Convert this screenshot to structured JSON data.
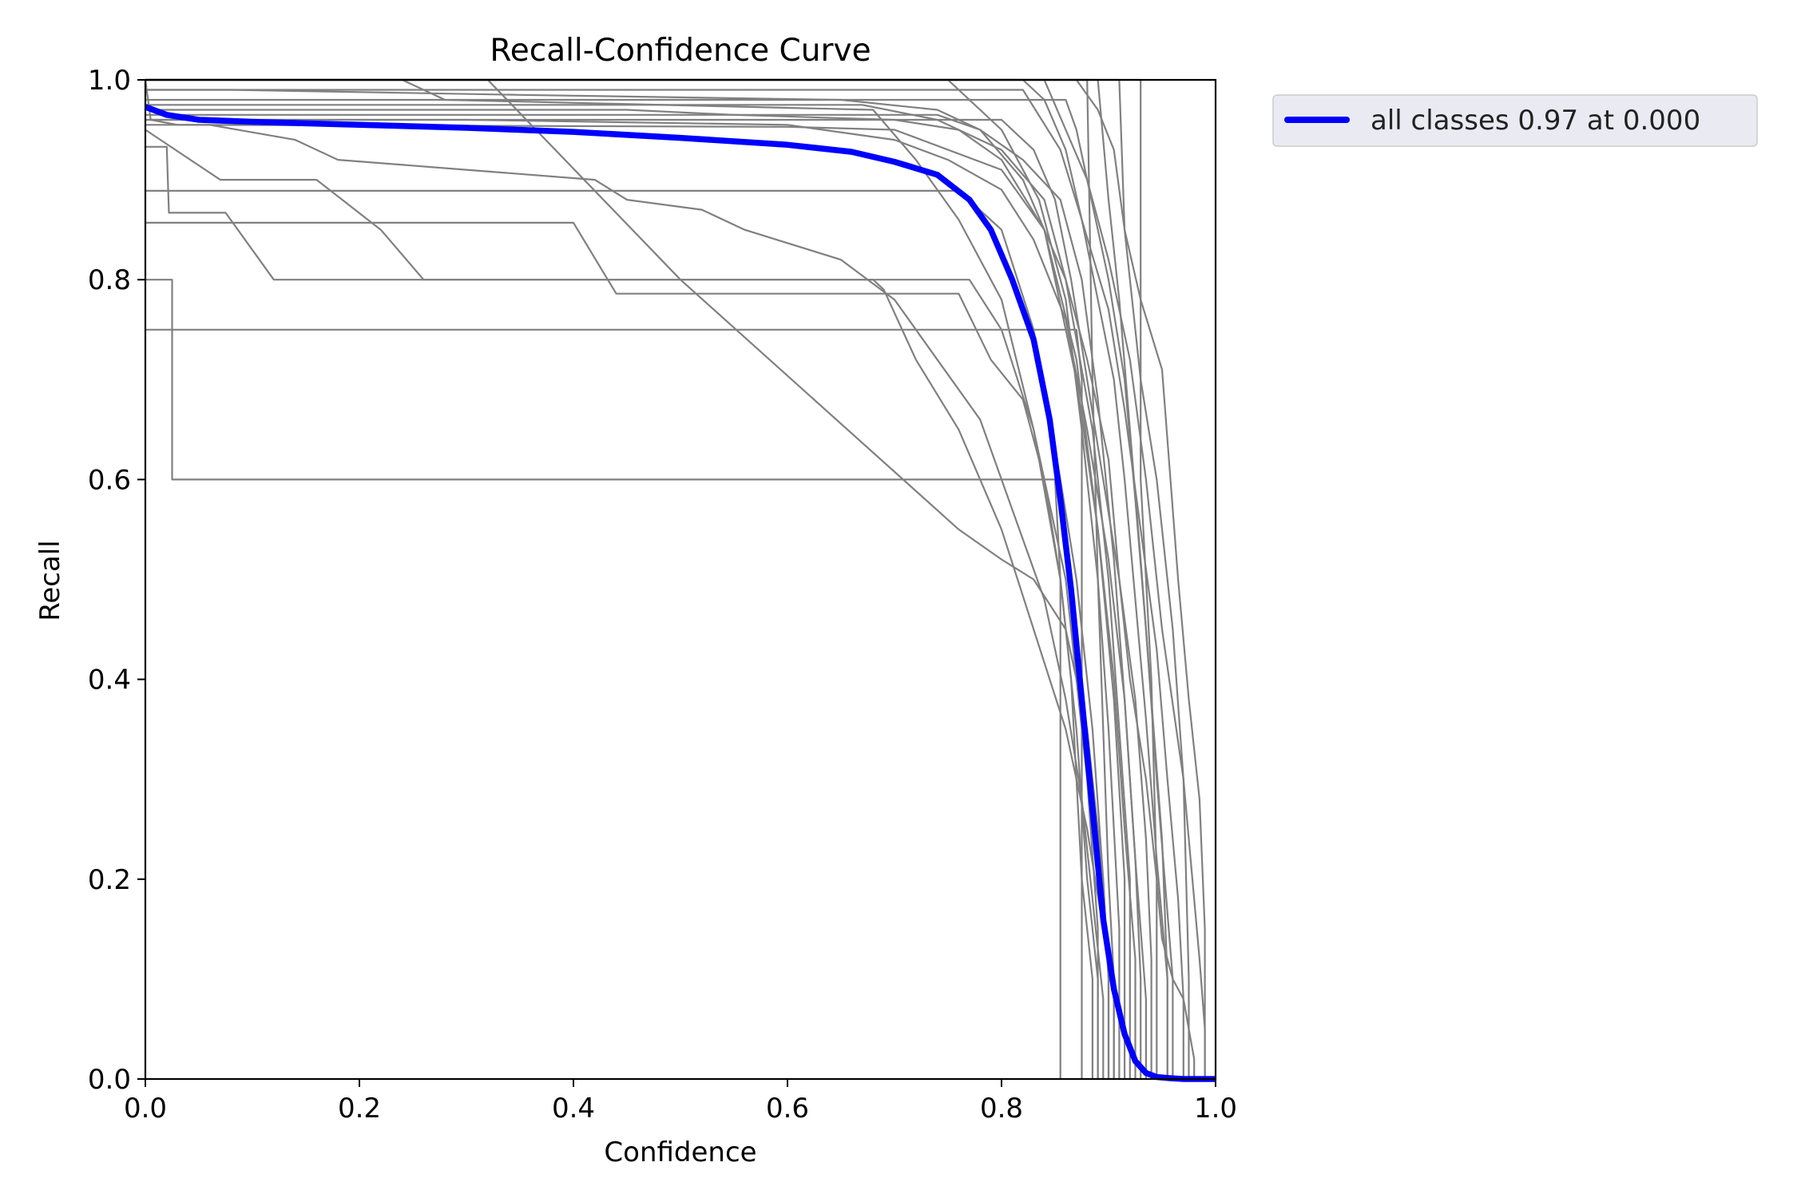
{
  "chart_data": {
    "type": "line",
    "title": "Recall-Confidence Curve",
    "xlabel": "Confidence",
    "ylabel": "Recall",
    "xlim": [
      0,
      1
    ],
    "ylim": [
      0,
      1
    ],
    "xticks": [
      "0.0",
      "0.2",
      "0.4",
      "0.6",
      "0.8",
      "1.0"
    ],
    "yticks": [
      "0.0",
      "0.2",
      "0.4",
      "0.6",
      "0.8",
      "1.0"
    ],
    "grid": false,
    "legend_position": "outside-top-right",
    "colors": {
      "class_curves": "#808080",
      "all_classes": "#0000ff",
      "legend_bg": "#eaeaf2"
    },
    "series": [
      {
        "name": "all classes 0.97 at 0.000",
        "x": [
          0.0,
          0.02,
          0.05,
          0.1,
          0.2,
          0.3,
          0.4,
          0.5,
          0.6,
          0.66,
          0.7,
          0.74,
          0.77,
          0.79,
          0.81,
          0.83,
          0.845,
          0.855,
          0.865,
          0.875,
          0.885,
          0.895,
          0.905,
          0.915,
          0.925,
          0.935,
          0.945,
          0.955,
          0.97,
          1.0
        ],
        "y": [
          0.973,
          0.965,
          0.96,
          0.958,
          0.955,
          0.952,
          0.948,
          0.942,
          0.935,
          0.928,
          0.918,
          0.905,
          0.88,
          0.85,
          0.8,
          0.74,
          0.66,
          0.58,
          0.49,
          0.38,
          0.27,
          0.16,
          0.09,
          0.045,
          0.018,
          0.006,
          0.002,
          0.001,
          0.0,
          0.0
        ]
      },
      {
        "x": [
          0.0,
          0.025,
          0.025,
          0.85,
          0.855,
          0.855
        ],
        "y": [
          0.8,
          0.8,
          0.6,
          0.6,
          0.5,
          0.0
        ]
      },
      {
        "x": [
          0.0,
          0.87,
          0.875,
          0.875
        ],
        "y": [
          0.75,
          0.75,
          0.7,
          0.0
        ]
      },
      {
        "x": [
          0.0,
          0.4,
          0.44,
          0.76,
          0.79,
          0.82,
          0.84,
          0.855,
          0.865,
          0.875,
          0.885,
          0.885
        ],
        "y": [
          0.857,
          0.857,
          0.786,
          0.786,
          0.72,
          0.68,
          0.6,
          0.5,
          0.4,
          0.2,
          0.1,
          0.0
        ]
      },
      {
        "x": [
          0.0,
          0.02,
          0.022,
          0.075,
          0.12,
          0.77,
          0.8,
          0.83,
          0.86,
          0.88,
          0.89,
          0.89
        ],
        "y": [
          0.933,
          0.933,
          0.867,
          0.867,
          0.8,
          0.8,
          0.75,
          0.65,
          0.5,
          0.3,
          0.15,
          0.0
        ]
      },
      {
        "x": [
          0.0,
          0.07,
          0.16,
          0.22,
          0.26,
          0.68,
          0.69,
          0.72,
          0.76,
          0.8,
          0.83,
          0.86,
          0.88,
          0.895,
          0.905,
          0.905
        ],
        "y": [
          0.95,
          0.9,
          0.9,
          0.85,
          0.8,
          0.8,
          0.79,
          0.72,
          0.65,
          0.55,
          0.45,
          0.35,
          0.25,
          0.15,
          0.08,
          0.0
        ]
      },
      {
        "x": [
          0.0,
          0.76,
          0.8,
          0.83,
          0.855,
          0.87,
          0.885,
          0.895,
          0.9,
          0.9
        ],
        "y": [
          0.889,
          0.889,
          0.85,
          0.75,
          0.6,
          0.5,
          0.35,
          0.2,
          0.1,
          0.0
        ]
      },
      {
        "x": [
          0.0,
          0.24,
          0.28,
          0.68,
          0.72,
          0.76,
          0.8,
          0.83,
          0.855,
          0.87,
          0.88,
          0.89,
          0.89
        ],
        "y": [
          1.0,
          1.0,
          0.98,
          0.97,
          0.92,
          0.86,
          0.78,
          0.65,
          0.5,
          0.35,
          0.2,
          0.1,
          0.0
        ]
      },
      {
        "x": [
          0.0,
          0.06,
          0.14,
          0.18,
          0.3,
          0.42,
          0.45,
          0.52,
          0.56,
          0.62,
          0.65,
          0.7,
          0.74,
          0.78,
          0.81,
          0.84,
          0.86,
          0.875,
          0.885,
          0.895,
          0.895
        ],
        "y": [
          0.955,
          0.955,
          0.94,
          0.92,
          0.91,
          0.9,
          0.88,
          0.87,
          0.85,
          0.83,
          0.82,
          0.78,
          0.72,
          0.66,
          0.57,
          0.48,
          0.38,
          0.28,
          0.18,
          0.08,
          0.0
        ]
      },
      {
        "x": [
          0.0,
          0.005,
          0.03,
          0.6,
          0.7,
          0.8,
          0.84,
          0.87,
          0.89,
          0.905,
          0.915,
          0.925,
          0.925
        ],
        "y": [
          1.0,
          0.96,
          0.955,
          0.953,
          0.95,
          0.91,
          0.85,
          0.7,
          0.55,
          0.4,
          0.25,
          0.12,
          0.0
        ]
      },
      {
        "x": [
          0.0,
          0.08,
          0.35,
          0.65,
          0.74,
          0.78,
          0.82,
          0.86,
          0.885,
          0.9,
          0.91,
          0.92,
          0.92
        ],
        "y": [
          0.99,
          0.99,
          0.985,
          0.98,
          0.97,
          0.95,
          0.9,
          0.8,
          0.65,
          0.5,
          0.35,
          0.2,
          0.0
        ]
      },
      {
        "x": [
          0.0,
          0.45,
          0.55,
          0.7,
          0.76,
          0.8,
          0.84,
          0.87,
          0.89,
          0.905,
          0.915,
          0.915
        ],
        "y": [
          0.97,
          0.97,
          0.965,
          0.96,
          0.95,
          0.92,
          0.85,
          0.72,
          0.55,
          0.38,
          0.2,
          0.0
        ]
      },
      {
        "x": [
          0.0,
          0.75,
          0.8,
          0.835,
          0.86,
          0.875,
          0.89,
          0.9,
          0.91,
          0.91
        ],
        "y": [
          1.0,
          1.0,
          0.95,
          0.88,
          0.78,
          0.65,
          0.5,
          0.35,
          0.15,
          0.0
        ]
      },
      {
        "x": [
          0.0,
          0.32,
          0.5,
          0.76,
          0.8,
          0.83,
          0.86,
          0.88,
          0.895,
          0.9,
          0.9
        ],
        "y": [
          1.0,
          1.0,
          0.8,
          0.55,
          0.52,
          0.5,
          0.45,
          0.35,
          0.2,
          0.1,
          0.0
        ]
      },
      {
        "x": [
          0.0,
          0.74,
          0.78,
          0.82,
          0.855,
          0.875,
          0.89,
          0.905,
          0.915,
          0.925,
          0.93,
          0.93
        ],
        "y": [
          0.965,
          0.965,
          0.95,
          0.92,
          0.88,
          0.8,
          0.68,
          0.52,
          0.38,
          0.22,
          0.1,
          0.0
        ]
      },
      {
        "x": [
          0.0,
          0.82,
          0.84,
          0.86,
          0.875,
          0.89,
          0.905,
          0.915,
          0.925,
          0.935,
          0.945,
          0.955,
          0.955
        ],
        "y": [
          1.0,
          1.0,
          0.98,
          0.93,
          0.86,
          0.78,
          0.7,
          0.6,
          0.48,
          0.36,
          0.22,
          0.1,
          0.0
        ]
      },
      {
        "x": [
          0.0,
          0.84,
          0.86,
          0.88,
          0.9,
          0.915,
          0.925,
          0.935,
          0.945,
          0.96,
          0.96
        ],
        "y": [
          1.0,
          1.0,
          0.95,
          0.9,
          0.8,
          0.7,
          0.58,
          0.45,
          0.3,
          0.1,
          0.0
        ]
      },
      {
        "x": [
          0.0,
          0.87,
          0.89,
          0.905,
          0.915,
          0.93,
          0.95,
          0.965,
          0.975,
          0.985,
          0.99,
          0.99
        ],
        "y": [
          1.0,
          1.0,
          0.97,
          0.93,
          0.85,
          0.78,
          0.71,
          0.5,
          0.38,
          0.28,
          0.15,
          0.0
        ]
      },
      {
        "x": [
          0.0,
          0.91,
          0.915,
          0.92,
          0.93,
          0.945,
          0.96,
          0.97,
          0.975,
          0.975
        ],
        "y": [
          1.0,
          1.0,
          0.85,
          0.8,
          0.7,
          0.6,
          0.45,
          0.3,
          0.1,
          0.0
        ]
      },
      {
        "x": [
          0.0,
          0.86,
          0.87,
          0.88,
          0.9,
          0.92,
          0.935,
          0.95,
          0.97,
          0.985,
          0.99,
          0.99
        ],
        "y": [
          0.98,
          0.98,
          0.95,
          0.9,
          0.82,
          0.72,
          0.6,
          0.45,
          0.3,
          0.12,
          0.05,
          0.0
        ]
      },
      {
        "x": [
          0.0,
          0.67,
          0.74,
          0.8,
          0.84,
          0.86,
          0.88,
          0.9,
          0.91,
          0.925,
          0.935,
          0.94,
          0.94
        ],
        "y": [
          0.975,
          0.975,
          0.96,
          0.93,
          0.88,
          0.8,
          0.72,
          0.62,
          0.5,
          0.38,
          0.24,
          0.12,
          0.0
        ]
      },
      {
        "x": [
          0.0,
          0.88,
          0.885,
          0.89,
          0.895,
          0.9,
          0.905,
          0.905
        ],
        "y": [
          1.0,
          1.0,
          0.7,
          0.5,
          0.35,
          0.2,
          0.1,
          0.0
        ]
      },
      {
        "x": [
          0.0,
          0.93,
          0.93,
          0.94,
          0.945,
          0.945
        ],
        "y": [
          1.0,
          1.0,
          0.6,
          0.4,
          0.2,
          0.0
        ]
      },
      {
        "x": [
          0.0,
          0.8,
          0.83,
          0.85,
          0.865,
          0.88,
          0.895,
          0.91,
          0.92,
          0.935,
          0.945,
          0.95,
          0.96,
          0.97,
          0.975,
          0.98,
          0.98
        ],
        "y": [
          0.96,
          0.96,
          0.93,
          0.88,
          0.8,
          0.7,
          0.6,
          0.5,
          0.4,
          0.3,
          0.2,
          0.14,
          0.1,
          0.08,
          0.05,
          0.02,
          0.0
        ]
      },
      {
        "x": [
          0.0,
          0.3,
          0.6,
          0.7,
          0.75,
          0.8,
          0.83,
          0.86,
          0.88,
          0.9,
          0.915,
          0.925,
          0.935,
          0.935
        ],
        "y": [
          0.96,
          0.96,
          0.955,
          0.94,
          0.92,
          0.89,
          0.84,
          0.76,
          0.65,
          0.52,
          0.38,
          0.22,
          0.08,
          0.0
        ]
      },
      {
        "x": [
          0.0,
          0.82,
          0.855,
          0.875,
          0.9,
          0.915,
          0.93,
          0.945,
          0.955,
          0.965,
          0.97,
          0.97
        ],
        "y": [
          0.99,
          0.99,
          0.93,
          0.86,
          0.77,
          0.67,
          0.55,
          0.43,
          0.3,
          0.18,
          0.08,
          0.0
        ]
      },
      {
        "x": [
          0.0,
          0.89,
          0.9,
          0.91,
          0.92,
          0.93,
          0.94,
          0.95,
          0.955,
          0.955
        ],
        "y": [
          1.0,
          1.0,
          0.88,
          0.78,
          0.65,
          0.52,
          0.38,
          0.24,
          0.1,
          0.0
        ]
      }
    ]
  }
}
